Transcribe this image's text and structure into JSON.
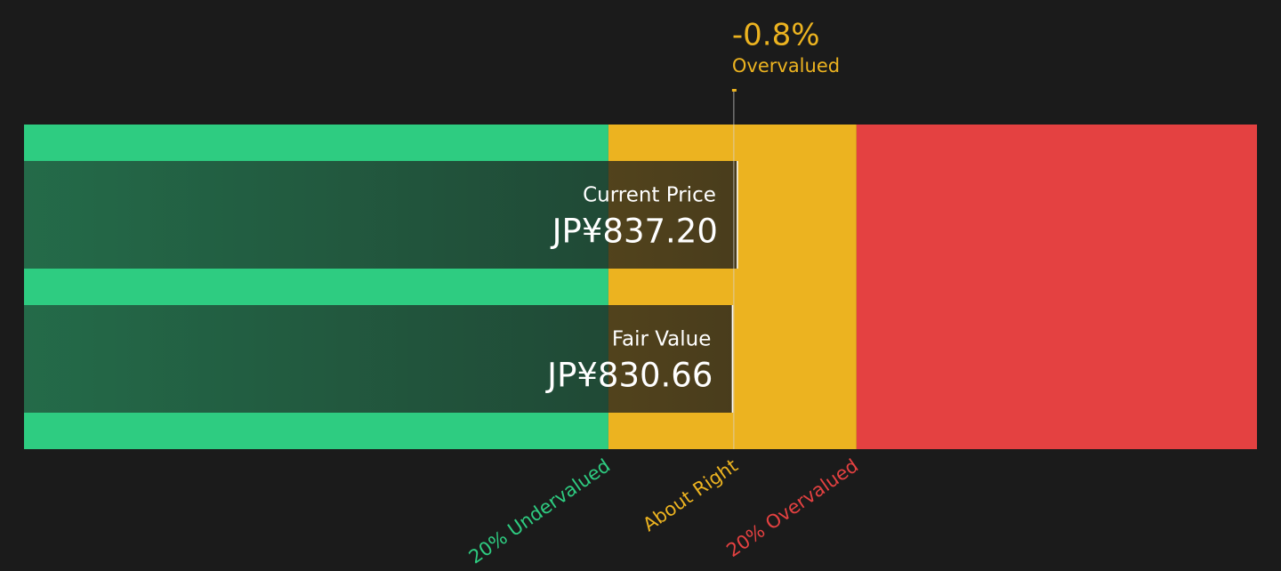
{
  "chart_data": {
    "type": "valuation",
    "xlim": [
      -118,
      1533
    ],
    "zones": [
      {
        "label": "20% Undervalued",
        "color": "#2ecc81",
        "from": -118,
        "to": 664.53
      },
      {
        "label": "About Right",
        "color": "#ecb320",
        "from": 664.53,
        "to": 996.79
      },
      {
        "label": "20% Overvalued",
        "color": "#e44141",
        "from": 996.79,
        "to": 1533
      }
    ],
    "series": [
      {
        "name": "Current Price",
        "values": [
          837.2
        ],
        "value_labels": [
          "JP¥837.20"
        ]
      },
      {
        "name": "Fair Value",
        "values": [
          830.66
        ],
        "value_labels": [
          "JP¥830.66"
        ]
      }
    ],
    "annotation": {
      "value": -0.8,
      "label": "-0.8%",
      "text": "Overvalued",
      "color": "#ecb320"
    }
  }
}
